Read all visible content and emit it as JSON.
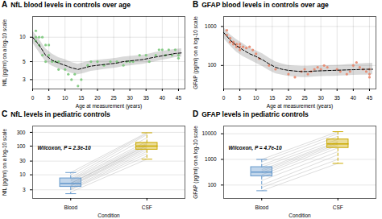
{
  "chart_data": [
    {
      "type": "scatter",
      "panel_label": "A",
      "title": "NfL blood levels in controls over age",
      "x_label": "Age at measurement (years)",
      "y_label": "NfL (pg/ml) on a log-10 scale",
      "log": "y",
      "grid": true,
      "xlim": [
        0,
        47
      ],
      "xticks": [
        0,
        5,
        10,
        15,
        20,
        25,
        30,
        35,
        40,
        45
      ],
      "ylim": [
        2.3,
        18
      ],
      "yticks": [
        3,
        5,
        10
      ],
      "series": [
        {
          "type": "area",
          "color": "gray",
          "x": [
            0,
            2,
            4,
            6,
            8,
            10,
            12,
            14,
            16,
            18,
            20,
            22,
            24,
            26,
            28,
            30,
            32,
            34,
            36,
            38,
            40,
            42,
            44,
            46
          ],
          "lo": [
            8.5,
            6.5,
            5.0,
            4.4,
            4.1,
            3.85,
            3.6,
            3.45,
            3.6,
            3.8,
            3.9,
            4.0,
            4.1,
            4.2,
            4.35,
            4.45,
            4.55,
            4.65,
            4.8,
            5.0,
            5.2,
            5.4,
            5.6,
            5.7
          ],
          "hi": [
            12,
            9.5,
            7.2,
            6.2,
            5.6,
            5.3,
            4.9,
            4.65,
            4.9,
            5.1,
            5.2,
            5.3,
            5.4,
            5.5,
            5.7,
            5.8,
            5.9,
            6.0,
            6.2,
            6.5,
            6.7,
            6.9,
            7.1,
            7.2
          ]
        },
        {
          "type": "scatter",
          "color": "#7bc87b",
          "x": [
            1,
            1,
            1,
            2,
            2,
            3,
            3,
            4,
            4,
            5,
            5,
            6,
            7,
            8,
            8,
            10,
            11,
            12,
            13,
            14,
            15,
            17,
            18,
            20,
            22,
            24,
            26,
            28,
            29,
            30,
            31,
            33,
            35,
            36,
            38,
            39,
            40,
            41,
            42,
            43,
            44,
            45,
            45
          ],
          "values": [
            10,
            12,
            9,
            10,
            8,
            10,
            6,
            8,
            5,
            6,
            8,
            5,
            5,
            5,
            4,
            4,
            3.5,
            3,
            3.5,
            2.5,
            3,
            4.5,
            5,
            5,
            4.5,
            5,
            5,
            4.5,
            5,
            5,
            5,
            6,
            6,
            5,
            6,
            7,
            7,
            6,
            7,
            6,
            7,
            6,
            5.5
          ]
        },
        {
          "type": "line",
          "color": "black",
          "line_style": "dashed",
          "x": [
            0,
            2,
            4,
            6,
            8,
            10,
            12,
            14,
            16,
            18,
            20,
            22,
            24,
            26,
            28,
            30,
            32,
            34,
            36,
            38,
            40,
            42,
            44,
            46
          ],
          "values": [
            10,
            8,
            6,
            5.2,
            4.8,
            4.5,
            4.2,
            4.0,
            4.2,
            4.4,
            4.5,
            4.6,
            4.7,
            4.8,
            5.0,
            5.1,
            5.2,
            5.3,
            5.5,
            5.7,
            5.9,
            6.1,
            6.3,
            6.4
          ]
        }
      ]
    },
    {
      "type": "scatter",
      "panel_label": "B",
      "title": "GFAP blood levels in controls over age",
      "x_label": "Age at measurement (years)",
      "y_label": "GFAP (pg/ml) on a log-10 scale",
      "log": "y",
      "grid": true,
      "xlim": [
        0,
        47
      ],
      "xticks": [
        0,
        5,
        10,
        15,
        20,
        25,
        30,
        35,
        40,
        45
      ],
      "ylim": [
        25,
        1800
      ],
      "yticks": [
        100,
        1000
      ],
      "series": [
        {
          "type": "area",
          "color": "gray",
          "x": [
            0,
            2,
            4,
            6,
            8,
            10,
            12,
            14,
            16,
            18,
            20,
            22,
            24,
            26,
            28,
            30,
            32,
            34,
            36,
            38,
            40,
            42,
            44,
            46
          ],
          "lo": [
            500,
            320,
            220,
            170,
            140,
            115,
            95,
            75,
            62,
            57,
            53,
            51,
            49,
            49,
            51,
            52,
            53,
            53,
            54,
            55,
            56,
            57,
            57,
            58
          ],
          "hi": [
            950,
            620,
            460,
            360,
            280,
            240,
            200,
            155,
            125,
            110,
            100,
            97,
            95,
            95,
            97,
            98,
            99,
            100,
            102,
            105,
            108,
            111,
            113,
            115
          ]
        },
        {
          "type": "scatter",
          "color": "#e8866a",
          "x": [
            1,
            1,
            2,
            2,
            3,
            3,
            4,
            4,
            5,
            5,
            5,
            6,
            7,
            8,
            9,
            10,
            11,
            14,
            16,
            20,
            22,
            24,
            25,
            26,
            27,
            28,
            29,
            30,
            31,
            32,
            35,
            36,
            38,
            39,
            40,
            41,
            42,
            43,
            44,
            45,
            45,
            45
          ],
          "values": [
            800,
            600,
            500,
            400,
            350,
            400,
            300,
            350,
            300,
            350,
            250,
            300,
            280,
            300,
            250,
            200,
            150,
            100,
            80,
            60,
            50,
            70,
            80,
            60,
            70,
            80,
            90,
            80,
            100,
            90,
            80,
            70,
            60,
            70,
            100,
            120,
            90,
            80,
            70,
            80,
            60,
            50
          ]
        },
        {
          "type": "line",
          "color": "black",
          "line_style": "dashed",
          "x": [
            0,
            2,
            4,
            6,
            8,
            10,
            12,
            14,
            16,
            18,
            20,
            22,
            24,
            26,
            28,
            30,
            32,
            34,
            36,
            38,
            40,
            42,
            44,
            46
          ],
          "values": [
            700,
            450,
            320,
            250,
            200,
            170,
            140,
            110,
            90,
            80,
            75,
            72,
            70,
            70,
            72,
            73,
            74,
            75,
            76,
            77,
            78,
            79,
            80,
            80
          ]
        }
      ]
    },
    {
      "type": "box",
      "panel_label": "C",
      "title": "NfL levels in pediatric controls",
      "x_label": "Condition",
      "y_label": "NfL (pg/ml) on a log-10 scale",
      "annotation": "Wilcoxon, P = 2.3e-10",
      "log": "y",
      "grid": "y",
      "categories": [
        "Blood",
        "CSF"
      ],
      "ylim": [
        1.5,
        500
      ],
      "yticks": [
        3,
        10,
        30,
        100,
        300
      ],
      "boxes": [
        {
          "median": 5.0,
          "q1": 3.8,
          "q3": 7.5,
          "whisker_low": 2.2,
          "whisker_high": 12,
          "color": "#6699cc",
          "line_style": "dashed"
        },
        {
          "median": 100,
          "q1": 75,
          "q3": 130,
          "whisker_low": 35,
          "whisker_high": 290,
          "color": "#ccaa00",
          "line_style": "dashed"
        }
      ],
      "lines": {
        "color": "#bbbbbb",
        "values": [
          [
            2.5,
            3.0,
            3.2,
            3.5,
            4.0,
            4.2,
            4.5,
            5.0,
            5.0,
            5.2,
            6.0,
            6.5,
            7.0,
            8.0,
            10,
            12
          ],
          [
            35,
            45,
            55,
            65,
            75,
            85,
            90,
            100,
            105,
            115,
            125,
            145,
            195,
            250,
            275,
            295
          ]
        ]
      }
    },
    {
      "type": "box",
      "panel_label": "D",
      "title": "GFAP levels in pediatric controls",
      "x_label": "Condition",
      "y_label": "GFAP (pg/ml) on a log-10 scale",
      "annotation": "Wilcoxon, P = 4.7e-10",
      "log": "y",
      "grid": "y",
      "categories": [
        "Blood",
        "CSF"
      ],
      "ylim": [
        30,
        20000
      ],
      "yticks": [
        100,
        1000,
        10000
      ],
      "boxes": [
        {
          "median": 320,
          "q1": 220,
          "q3": 500,
          "whisker_low": 60,
          "whisker_high": 1000,
          "color": "#6699cc",
          "line_style": "dashed"
        },
        {
          "median": 4000,
          "q1": 2800,
          "q3": 6000,
          "whisker_low": 700,
          "whisker_high": 12000,
          "color": "#ccaa00",
          "line_style": "dashed"
        }
      ],
      "lines": {
        "color": "#bbbbbb",
        "values": [
          [
            60,
            80,
            100,
            150,
            200,
            250,
            300,
            350,
            400,
            500,
            600,
            800,
            1000
          ],
          [
            700,
            1000,
            1500,
            2000,
            2800,
            3500,
            4000,
            4500,
            5000,
            6000,
            8000,
            10000,
            12000
          ]
        ]
      }
    }
  ]
}
